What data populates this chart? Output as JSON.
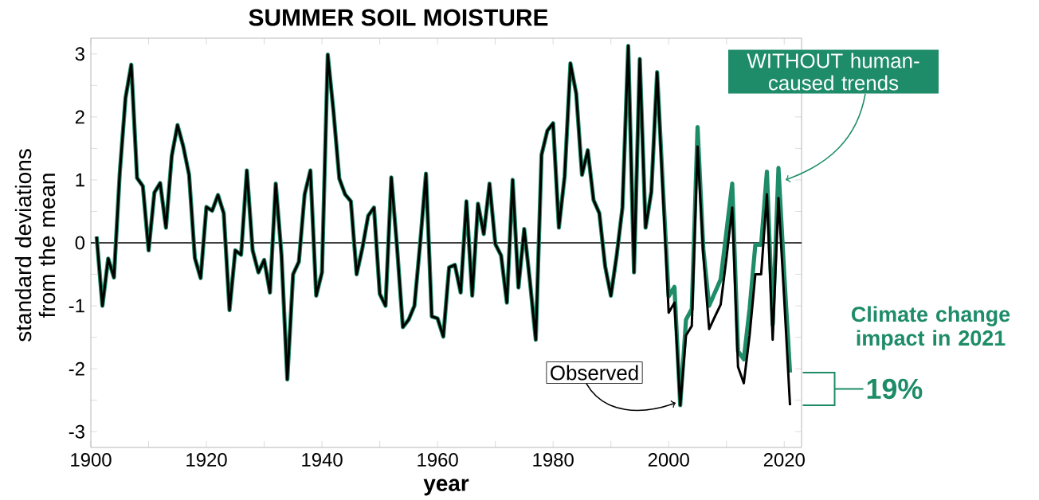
{
  "chart_data": {
    "type": "line",
    "title": "SUMMER SOIL MOISTURE",
    "xlabel": "year",
    "ylabel": "standard deviations from the mean",
    "xlim": [
      1900,
      2023
    ],
    "ylim": [
      -3.25,
      3.25
    ],
    "xticks": [
      1900,
      {
        "value": 1910,
        "label": null
      },
      1920,
      {
        "value": 1930,
        "label": null
      },
      1940,
      {
        "value": 1950,
        "label": null
      },
      1960,
      {
        "value": 1970,
        "label": null
      },
      1980,
      {
        "value": 1990,
        "label": null
      },
      2000,
      {
        "value": 2010,
        "label": null
      },
      2020
    ],
    "yticks": [
      -3,
      {
        "value": -2.5,
        "label": null
      },
      -2,
      {
        "value": -1.5,
        "label": null
      },
      -1,
      {
        "value": -0.5,
        "label": null
      },
      0,
      {
        "value": 0.5,
        "label": null
      },
      1,
      {
        "value": 1.5,
        "label": null
      },
      2,
      {
        "value": 2.5,
        "label": null
      },
      3
    ],
    "x": [
      1901,
      1902,
      1903,
      1904,
      1905,
      1906,
      1907,
      1908,
      1909,
      1910,
      1911,
      1912,
      1913,
      1914,
      1915,
      1916,
      1917,
      1918,
      1919,
      1920,
      1921,
      1922,
      1923,
      1924,
      1925,
      1926,
      1927,
      1928,
      1929,
      1930,
      1931,
      1932,
      1933,
      1934,
      1935,
      1936,
      1937,
      1938,
      1939,
      1940,
      1941,
      1942,
      1943,
      1944,
      1945,
      1946,
      1947,
      1948,
      1949,
      1950,
      1951,
      1952,
      1953,
      1954,
      1955,
      1956,
      1957,
      1958,
      1959,
      1960,
      1961,
      1962,
      1963,
      1964,
      1965,
      1966,
      1967,
      1968,
      1969,
      1970,
      1971,
      1972,
      1973,
      1974,
      1975,
      1976,
      1977,
      1978,
      1979,
      1980,
      1981,
      1982,
      1983,
      1984,
      1985,
      1986,
      1987,
      1988,
      1989,
      1990,
      1991,
      1992,
      1993,
      1994,
      1995,
      1996,
      1997,
      1998,
      1999,
      2000,
      2001,
      2002,
      2003,
      2004,
      2005,
      2006,
      2007,
      2008,
      2009,
      2010,
      2011,
      2012,
      2013,
      2014,
      2015,
      2016,
      2017,
      2018,
      2019,
      2020,
      2021
    ],
    "series": [
      {
        "name": "WITHOUT human-caused trends",
        "color": "#1e8c68",
        "values": [
          0.1,
          -1.0,
          -0.25,
          -0.55,
          1.1,
          2.3,
          2.83,
          1.03,
          0.9,
          -0.12,
          0.8,
          0.95,
          0.24,
          1.38,
          1.87,
          1.53,
          1.08,
          -0.24,
          -0.56,
          0.57,
          0.51,
          0.76,
          0.47,
          -1.07,
          -0.12,
          -0.19,
          1.15,
          -0.12,
          -0.47,
          -0.27,
          -0.79,
          0.94,
          -0.2,
          -2.17,
          -0.5,
          -0.3,
          0.77,
          1.15,
          -0.84,
          -0.47,
          2.99,
          2.08,
          1.02,
          0.77,
          0.66,
          -0.5,
          -0.08,
          0.43,
          0.56,
          -0.81,
          -1.0,
          1.04,
          -0.08,
          -1.34,
          -1.22,
          -1.0,
          0.0,
          1.1,
          -1.17,
          -1.2,
          -1.49,
          -0.39,
          -0.35,
          -0.79,
          0.66,
          -0.84,
          0.62,
          0.14,
          0.94,
          -0.02,
          -0.2,
          -0.95,
          1.0,
          -0.71,
          0.22,
          -0.62,
          -1.54,
          1.4,
          1.78,
          1.9,
          0.24,
          1.06,
          2.85,
          2.37,
          1.08,
          1.47,
          0.68,
          0.47,
          -0.37,
          -0.84,
          -0.2,
          0.56,
          3.13,
          -0.47,
          2.92,
          0.24,
          0.81,
          2.71,
          0.9,
          -0.85,
          -0.7,
          -2.58,
          -1.22,
          -1.05,
          1.84,
          -0.1,
          -1.0,
          -0.79,
          -0.58,
          0.18,
          0.94,
          -1.72,
          -1.85,
          -1.05,
          -0.03,
          -0.03,
          1.13,
          -1.3,
          1.19,
          -0.5,
          -2.06
        ]
      },
      {
        "name": "Observed",
        "color": "#000000",
        "values": [
          0.1,
          -1.0,
          -0.25,
          -0.55,
          1.1,
          2.3,
          2.83,
          1.03,
          0.9,
          -0.12,
          0.8,
          0.95,
          0.24,
          1.38,
          1.87,
          1.53,
          1.08,
          -0.24,
          -0.56,
          0.57,
          0.51,
          0.76,
          0.47,
          -1.07,
          -0.12,
          -0.19,
          1.15,
          -0.12,
          -0.47,
          -0.27,
          -0.79,
          0.94,
          -0.2,
          -2.17,
          -0.5,
          -0.3,
          0.77,
          1.15,
          -0.84,
          -0.47,
          2.99,
          2.08,
          1.02,
          0.77,
          0.66,
          -0.5,
          -0.08,
          0.43,
          0.56,
          -0.81,
          -1.0,
          1.04,
          -0.08,
          -1.34,
          -1.22,
          -1.0,
          0.0,
          1.1,
          -1.17,
          -1.2,
          -1.49,
          -0.39,
          -0.35,
          -0.79,
          0.66,
          -0.84,
          0.62,
          0.14,
          0.94,
          -0.02,
          -0.2,
          -0.95,
          1.0,
          -0.71,
          0.22,
          -0.62,
          -1.54,
          1.4,
          1.78,
          1.9,
          0.24,
          1.06,
          2.85,
          2.37,
          1.08,
          1.47,
          0.68,
          0.47,
          -0.37,
          -0.84,
          -0.2,
          0.56,
          3.13,
          -0.47,
          2.92,
          0.24,
          0.81,
          2.71,
          0.8,
          -1.11,
          -0.95,
          -2.58,
          -1.47,
          -1.32,
          1.53,
          -0.2,
          -1.37,
          -1.17,
          -0.98,
          -0.24,
          0.56,
          -1.97,
          -2.23,
          -1.47,
          -0.5,
          -0.5,
          0.77,
          -1.54,
          0.71,
          -0.9,
          -2.58
        ]
      }
    ],
    "ref_lines": [
      {
        "axis": "y",
        "value": 0,
        "color": "#000000"
      }
    ],
    "annotations": [
      "Climate change impact in 2021",
      "19%"
    ]
  }
}
